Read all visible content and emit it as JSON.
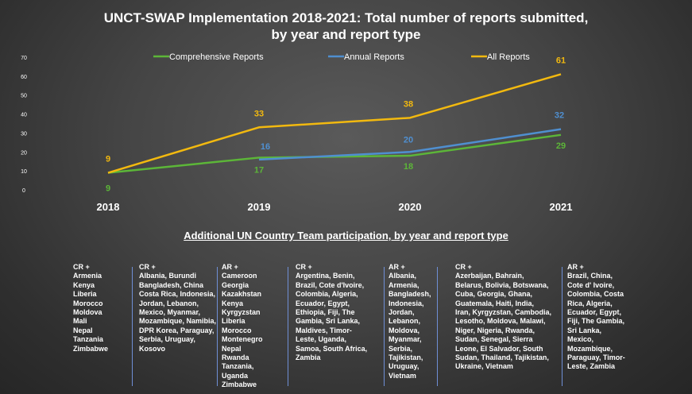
{
  "title_line1": "UNCT-SWAP Implementation 2018-2021: Total number of reports submitted,",
  "title_line2": "by year and report type",
  "chart_data": {
    "type": "line",
    "x": [
      "2018",
      "2019",
      "2020",
      "2021"
    ],
    "ylim": [
      0,
      70
    ],
    "yticks": [
      "0",
      "10",
      "20",
      "30",
      "40",
      "50",
      "60",
      "70"
    ],
    "legend_position": "top",
    "series": [
      {
        "name": "Comprehensive Reports",
        "color": "#5cb638",
        "values": [
          9,
          17,
          18,
          29
        ],
        "labels": [
          "9",
          "17",
          "18",
          "29"
        ]
      },
      {
        "name": "Annual Reports",
        "color": "#4f8fd0",
        "values": [
          null,
          16,
          20,
          32
        ],
        "labels": [
          "",
          "16",
          "20",
          "32"
        ]
      },
      {
        "name": "All Reports",
        "color": "#f2b90f",
        "values": [
          9,
          33,
          38,
          61
        ],
        "labels": [
          "9",
          "33",
          "38",
          "61"
        ]
      }
    ]
  },
  "participation": {
    "heading": "Additional UN Country Team participation, by year and report type",
    "columns": [
      {
        "header": "CR +",
        "lines": [
          "Armenia",
          "Kenya",
          "Liberia",
          "Morocco",
          "Moldova",
          "Mali",
          "Nepal",
          "Tanzania",
          "Zimbabwe"
        ]
      },
      {
        "header": "CR +",
        "lines": [
          "Albania,  Burundi",
          "Bangladesh, China",
          "Costa Rica, Indonesia,",
          "Jordan, Lebanon,",
          "Mexico, Myanmar,",
          "Mozambique, Namibia,",
          "DPR Korea, Paraguay,",
          "Serbia, Uruguay,",
          "Kosovo"
        ]
      },
      {
        "header": "AR +",
        "lines": [
          "Cameroon",
          "Georgia",
          "Kazakhstan",
          "Kenya",
          "Kyrgyzstan",
          "Liberia",
          "Morocco",
          "Montenegro",
          "Nepal",
          "Rwanda",
          "Tanzania,",
          "Uganda",
          "Zimbabwe"
        ]
      },
      {
        "header": "CR +",
        "lines": [
          "Argentina, Benin,",
          "Brazil, Cote d'Ivoire,",
          "Colombia, Algeria,",
          "Ecuador, Egypt,",
          "Ethiopia, Fiji, The",
          "Gambia, Sri Lanka,",
          "Maldives, Timor-",
          "Leste, Uganda,",
          "Samoa, South Africa,",
          "Zambia"
        ]
      },
      {
        "header": "AR +",
        "lines": [
          "Albania,",
          "Armenia,",
          "Bangladesh,",
          "Indonesia,",
          "Jordan,",
          "Lebanon,",
          "Moldova,",
          "Myanmar,",
          "Serbia,",
          "Tajikistan,",
          "Uruguay,",
          "Vietnam"
        ]
      },
      {
        "header": "CR +",
        "lines": [
          "Azerbaijan,  Bahrain,",
          "Belarus, Bolivia, Botswana,",
          "Cuba, Georgia, Ghana,",
          "Guatemala, Haiti, India,",
          "Iran, Kyrgyzstan, Cambodia,",
          "Lesotho, Moldova, Malawi,",
          "Niger, Nigeria, Rwanda,",
          "Sudan, Senegal, Sierra",
          "Leone, El Salvador, South",
          "Sudan, Thailand, Tajikistan,",
          "Ukraine, Vietnam"
        ]
      },
      {
        "header": "AR  +",
        "lines": [
          "Brazil, China,",
          "Cote d' Ivoire,",
          "Colombia, Costa",
          "Rica, Algeria,",
          "Ecuador, Egypt,",
          "Fiji, The Gambia,",
          "Sri Lanka,",
          "Mexico,",
          "Mozambique,",
          "Paraguay, Timor-",
          "Leste, Zambia"
        ]
      }
    ]
  }
}
